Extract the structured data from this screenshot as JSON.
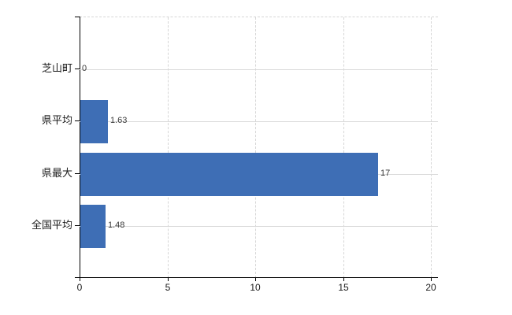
{
  "chart_data": {
    "type": "bar",
    "orientation": "horizontal",
    "title": "",
    "xlabel": "",
    "ylabel": "",
    "categories": [
      "芝山町",
      "県平均",
      "県最大",
      "全国平均"
    ],
    "values": [
      0,
      1.63,
      17,
      1.48
    ],
    "value_labels": [
      "0",
      "1.63",
      "17",
      "1.48"
    ],
    "xlim": [
      0,
      20
    ],
    "x_ticks": [
      0,
      5,
      10,
      15,
      20
    ],
    "x_tick_labels": [
      "0",
      "5",
      "10",
      "15",
      "20"
    ],
    "grid": "vertical-dashed, horizontal-category-lines",
    "legend": "none",
    "bar_color": "#3E6EB5"
  },
  "colors": {
    "bar": "#3E6EB5",
    "axis": "#000000",
    "gridline": "#D6D6D6",
    "row_line": "#DADADA",
    "value_label": "#3A3A3A",
    "tick_label": "#1A1A1A",
    "background": "#FFFFFF"
  }
}
